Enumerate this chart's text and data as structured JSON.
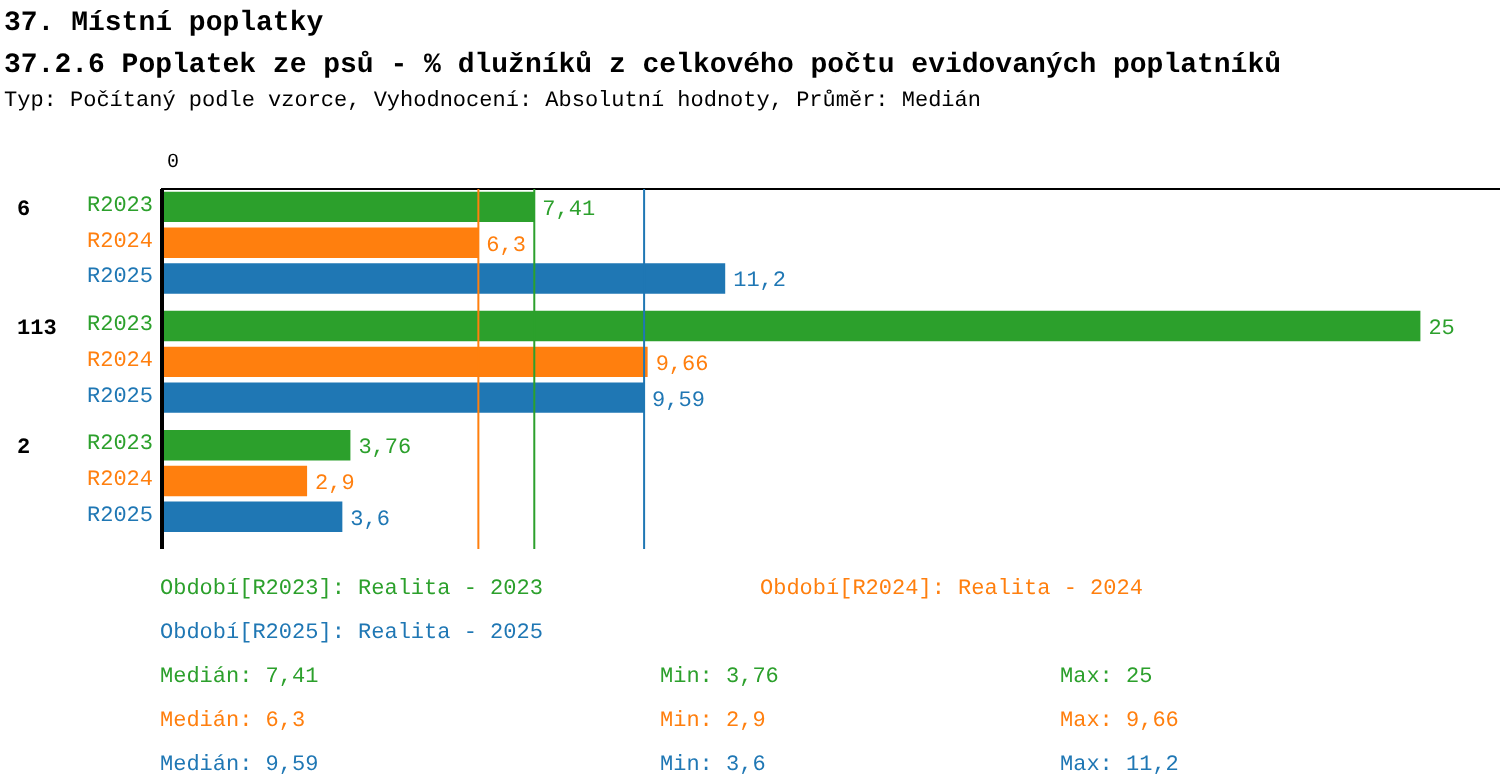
{
  "chart_data": {
    "type": "bar",
    "orientation": "horizontal",
    "title": "37. Místní poplatky",
    "subtitle": "37.2.6 Poplatek ze psů - % dlužníků z celkového počtu evidovaných poplatníků",
    "categories": [
      "6",
      "113",
      "2"
    ],
    "series": [
      {
        "name": "R2023",
        "color": "#2ca02c",
        "values": [
          7.41,
          25,
          3.76
        ],
        "value_labels": [
          "7,41",
          "25",
          "3,76"
        ]
      },
      {
        "name": "R2024",
        "color": "#ff7f0e",
        "values": [
          6.3,
          9.66,
          2.9
        ],
        "value_labels": [
          "6,3",
          "9,66",
          "2,9"
        ]
      },
      {
        "name": "R2025",
        "color": "#1f77b4",
        "values": [
          11.2,
          9.59,
          3.6
        ],
        "value_labels": [
          "11,2",
          "9,59",
          "3,6"
        ]
      }
    ],
    "xlim": [
      0,
      26.6
    ],
    "ref_lines": [
      {
        "axis": "x",
        "value": 6.3,
        "color": "#ff7f0e"
      },
      {
        "axis": "x",
        "value": 7.41,
        "color": "#2ca02c"
      },
      {
        "axis": "x",
        "value": 9.59,
        "color": "#1f77b4"
      }
    ],
    "annotations": [
      "Typ: Počítaný podle vzorce, Vyhodnocení: Absolutní hodnoty, Průměr: Medián",
      "0",
      "Období[R2023]: Realita - 2023",
      "Období[R2024]: Realita - 2024",
      "Období[R2025]: Realita - 2025",
      "Medián: 7,41",
      "Min: 3,76",
      "Max: 25",
      "Medián: 6,3",
      "Min: 2,9",
      "Max: 9,66",
      "Medián: 9,59",
      "Min: 3,6",
      "Max: 11,2"
    ]
  }
}
